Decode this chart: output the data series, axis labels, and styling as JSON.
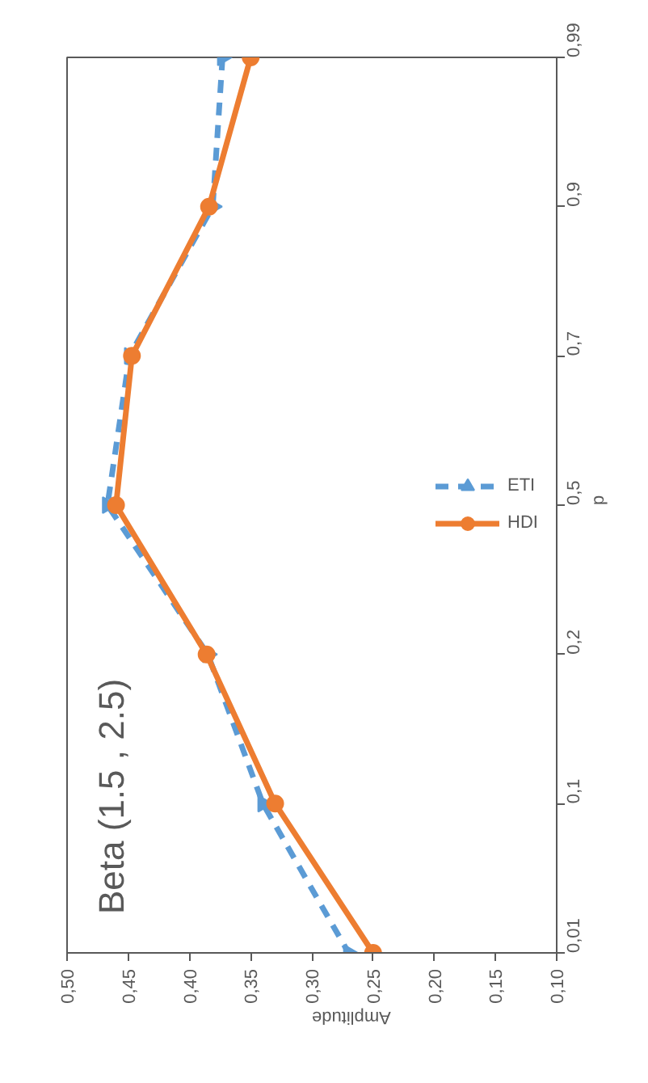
{
  "chart_data": {
    "type": "line",
    "orientation": "horizontal",
    "title": "Beta (1.5 , 2.5)",
    "xlabel": "Amplitude",
    "ylabel": "p",
    "categories": [
      "0,99",
      "0,9",
      "0,7",
      "0,5",
      "0,2",
      "0,1",
      "0,01"
    ],
    "series": [
      {
        "name": "ETI",
        "color": "#5b9bd5",
        "marker": "triangle",
        "line_style": "dashed",
        "values": [
          0.373,
          0.381,
          0.449,
          0.467,
          0.385,
          0.34,
          0.27
        ]
      },
      {
        "name": "HDI",
        "color": "#ed7d31",
        "marker": "circle",
        "line_style": "solid",
        "values": [
          0.35,
          0.384,
          0.447,
          0.46,
          0.386,
          0.33,
          0.25
        ]
      }
    ],
    "xlim": [
      0.5,
      0.1
    ],
    "xticks": [
      {
        "value": 0.5,
        "label": "0,50"
      },
      {
        "value": 0.45,
        "label": "0,45"
      },
      {
        "value": 0.4,
        "label": "0,40"
      },
      {
        "value": 0.35,
        "label": "0,35"
      },
      {
        "value": 0.3,
        "label": "0,30"
      },
      {
        "value": 0.25,
        "label": "0,25"
      },
      {
        "value": 0.2,
        "label": "0,20"
      },
      {
        "value": 0.15,
        "label": "0,15"
      },
      {
        "value": 0.1,
        "label": "0,10"
      }
    ],
    "grid": false,
    "legend": "right"
  }
}
